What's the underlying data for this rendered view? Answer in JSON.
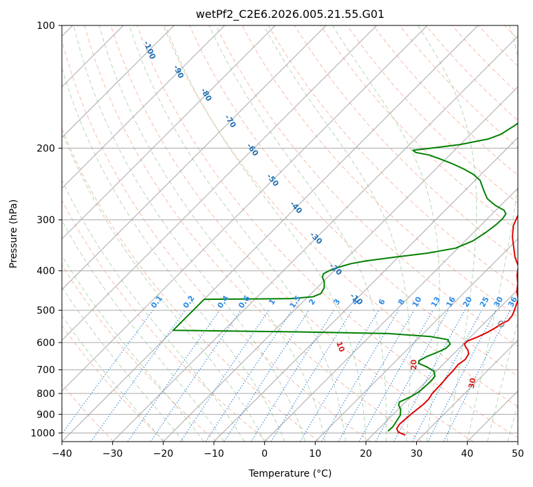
{
  "chart_data": {
    "type": "line",
    "title": "wetPf2_C2E6.2026.005.21.55.G01",
    "xlabel": "Temperature (°C)",
    "ylabel": "Pressure (hPa)",
    "xlim": [
      -40,
      50
    ],
    "ylim": [
      1050,
      100
    ],
    "y_scale": "log",
    "x_ticks": [
      -40,
      -30,
      -20,
      -10,
      0,
      10,
      20,
      30,
      40,
      50
    ],
    "y_ticks": [
      100,
      200,
      300,
      400,
      500,
      600,
      700,
      800,
      900,
      1000
    ],
    "grid": true,
    "series": [
      {
        "color": "#e00000",
        "points": [
          [
            26.5,
            1012
          ],
          [
            24.5,
            995
          ],
          [
            23.5,
            975
          ],
          [
            23.2,
            950
          ],
          [
            23.5,
            900
          ],
          [
            24,
            850
          ],
          [
            24,
            825
          ],
          [
            23.6,
            800
          ],
          [
            23.5,
            760
          ],
          [
            23.3,
            730
          ],
          [
            23.2,
            700
          ],
          [
            23.0,
            680
          ],
          [
            23.4,
            660
          ],
          [
            23.0,
            640
          ],
          [
            22.0,
            625
          ],
          [
            21.0,
            615
          ],
          [
            20.2,
            605
          ],
          [
            20.2,
            595
          ],
          [
            21.5,
            580
          ],
          [
            22.5,
            565
          ],
          [
            23.2,
            550
          ],
          [
            23.5,
            540
          ],
          [
            24.2,
            530
          ],
          [
            24.0,
            515
          ],
          [
            23.4,
            500
          ],
          [
            22.0,
            470
          ],
          [
            20.2,
            450
          ],
          [
            18.8,
            430
          ],
          [
            17.0,
            410
          ],
          [
            15.5,
            390
          ],
          [
            13.0,
            370
          ],
          [
            10.8,
            350
          ],
          [
            8.5,
            330
          ],
          [
            6.5,
            310
          ],
          [
            5.4,
            293
          ],
          [
            4.8,
            280
          ],
          [
            4.1,
            266
          ],
          [
            3.7,
            255
          ],
          [
            3.8,
            245
          ],
          [
            4.4,
            238
          ],
          [
            5.0,
            228
          ],
          [
            5.4,
            218
          ],
          [
            5.6,
            208
          ],
          [
            5.4,
            200
          ],
          [
            4.8,
            192
          ],
          [
            4.0,
            182
          ],
          [
            2.8,
            170
          ],
          [
            1.6,
            158
          ],
          [
            0.4,
            148
          ],
          [
            -0.8,
            140
          ],
          [
            -1.3,
            132
          ],
          [
            -1.4,
            124
          ],
          [
            -1.4,
            116
          ],
          [
            -1.6,
            110
          ],
          [
            -2.0,
            105
          ],
          [
            -2.2,
            100
          ]
        ]
      },
      {
        "color": "#008000",
        "points": [
          [
            22.3,
            990
          ],
          [
            22.4,
            965
          ],
          [
            22.0,
            935
          ],
          [
            21.6,
            905
          ],
          [
            20.5,
            875
          ],
          [
            19.3,
            855
          ],
          [
            18.8,
            840
          ],
          [
            20.0,
            815
          ],
          [
            20.6,
            795
          ],
          [
            20.8,
            770
          ],
          [
            20.9,
            745
          ],
          [
            20.7,
            725
          ],
          [
            19.5,
            705
          ],
          [
            17.5,
            690
          ],
          [
            15.0,
            675
          ],
          [
            14.5,
            665
          ],
          [
            15.2,
            650
          ],
          [
            16.4,
            635
          ],
          [
            17.4,
            620
          ],
          [
            17.4,
            605
          ],
          [
            16.0,
            590
          ],
          [
            12.0,
            580
          ],
          [
            3.0,
            570
          ],
          [
            -15.0,
            565
          ],
          [
            -40.0,
            560
          ],
          [
            -40.0,
            470
          ],
          [
            -23.0,
            468
          ],
          [
            -19.0,
            463
          ],
          [
            -18.1,
            455
          ],
          [
            -18.6,
            440
          ],
          [
            -19.8,
            425
          ],
          [
            -21.0,
            415
          ],
          [
            -21.5,
            407
          ],
          [
            -21.0,
            400
          ],
          [
            -19.8,
            392
          ],
          [
            -18.0,
            384
          ],
          [
            -15.5,
            378
          ],
          [
            -10.5,
            370
          ],
          [
            -5.0,
            362
          ],
          [
            -0.5,
            352
          ],
          [
            1.5,
            338
          ],
          [
            2.4,
            322
          ],
          [
            2.9,
            308
          ],
          [
            3.0,
            298
          ],
          [
            2.7,
            290
          ],
          [
            1.6,
            284
          ],
          [
            -1.2,
            276
          ],
          [
            -4.0,
            266
          ],
          [
            -6.5,
            253
          ],
          [
            -9.0,
            240
          ],
          [
            -11.5,
            232
          ],
          [
            -14.5,
            225
          ],
          [
            -18.0,
            218
          ],
          [
            -21.5,
            212
          ],
          [
            -24.0,
            208
          ],
          [
            -27.2,
            205
          ],
          [
            -28.2,
            202.5
          ],
          [
            -25.0,
            200
          ],
          [
            -20.0,
            196
          ],
          [
            -15.6,
            190
          ],
          [
            -14.0,
            185
          ],
          [
            -13.0,
            176
          ],
          [
            -12.3,
            168
          ],
          [
            -9.5,
            160
          ],
          [
            -6.5,
            152
          ],
          [
            -5.0,
            145
          ],
          [
            -4.4,
            138
          ],
          [
            -4.4,
            130
          ],
          [
            -4.3,
            124
          ],
          [
            -4.2,
            118
          ],
          [
            -3.3,
            112
          ],
          [
            -1.8,
            106
          ],
          [
            -0.4,
            100
          ]
        ]
      }
    ],
    "annotations": {
      "dry_adiabat_labels": [
        "-100",
        "-90",
        "-80",
        "-70",
        "-60",
        "-50",
        "-40",
        "-30",
        "-20",
        "-10"
      ],
      "mixing_ratio_labels": [
        "0.1",
        "0.2",
        "0.4",
        "0.6",
        "1",
        "1.5",
        "2",
        "3",
        "4",
        "6",
        "8",
        "10",
        "13",
        "16",
        "20",
        "25",
        "30",
        "36"
      ],
      "moist_adiabat_labels": [
        "10",
        "20",
        "30",
        "40"
      ],
      "lcl_marker": {
        "x": 23.5,
        "y": 540
      }
    },
    "colors": {
      "temperature": "#e00000",
      "dewpoint": "#008000",
      "dry_adiabat": "#f3a48c",
      "moist_adiabat": "#9cc99c",
      "mixing_ratio": "#3a8fd8",
      "dry_label": "#1f6fb0",
      "mixing_label": "#2e8be6",
      "moist_label": "#d62020"
    }
  }
}
